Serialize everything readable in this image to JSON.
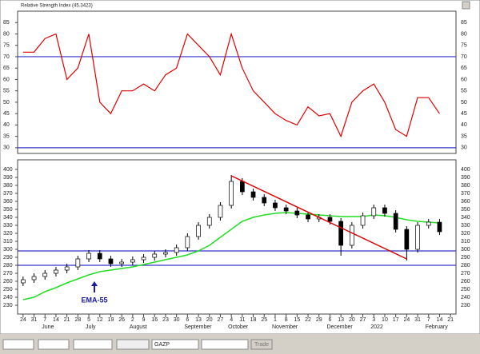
{
  "chart_data": [
    {
      "type": "line",
      "title": "Relative Strength Index (45.3423)",
      "color": "#e00000",
      "values": [
        72,
        72,
        78,
        80,
        60,
        65,
        80,
        50,
        45,
        55,
        55,
        58,
        55,
        62,
        65,
        80,
        75,
        70,
        62,
        80,
        65,
        55,
        50,
        45,
        42,
        40,
        48,
        44,
        45,
        35,
        50,
        55,
        58,
        50,
        38,
        35,
        52,
        52,
        45,
        null
      ],
      "ylim": [
        27.5,
        90
      ],
      "yticks": [
        30,
        35,
        40,
        45,
        50,
        55,
        60,
        65,
        70,
        75,
        80,
        85
      ],
      "hlines": [
        70,
        30
      ],
      "hline_color": "#3333cc"
    },
    {
      "type": "candlestick",
      "categories": [
        "24",
        "31",
        "7",
        "14",
        "21",
        "28",
        "5",
        "12",
        "19",
        "26",
        "2",
        "9",
        "16",
        "23",
        "30",
        "6",
        "13",
        "20",
        "27",
        "4",
        "11",
        "18",
        "25",
        "1",
        "8",
        "15",
        "22",
        "29",
        "6",
        "13",
        "20",
        "27",
        "3",
        "10",
        "17",
        "24",
        "31",
        "7",
        "14",
        "21"
      ],
      "month_labels": [
        null,
        null,
        "June",
        null,
        null,
        null,
        "July",
        null,
        null,
        null,
        "August",
        null,
        null,
        null,
        null,
        "September",
        null,
        null,
        null,
        "October",
        null,
        null,
        null,
        "November",
        null,
        null,
        null,
        null,
        "December",
        null,
        null,
        null,
        "2022",
        null,
        null,
        null,
        null,
        "February",
        null,
        null
      ],
      "open": [
        258,
        262,
        266,
        270,
        274,
        278,
        288,
        295,
        288,
        282,
        284,
        287,
        290,
        294,
        296,
        302,
        316,
        330,
        340,
        355,
        385,
        372,
        365,
        358,
        352,
        348,
        343,
        338,
        340,
        335,
        305,
        330,
        342,
        352,
        345,
        325,
        300,
        330,
        334,
        null
      ],
      "high": [
        266,
        270,
        274,
        278,
        282,
        292,
        299,
        299,
        292,
        288,
        291,
        294,
        298,
        300,
        306,
        320,
        334,
        344,
        359,
        393,
        389,
        376,
        369,
        362,
        356,
        352,
        347,
        344,
        344,
        339,
        334,
        346,
        356,
        356,
        349,
        329,
        334,
        338,
        338,
        null
      ],
      "low": [
        254,
        258,
        262,
        266,
        270,
        274,
        284,
        284,
        278,
        278,
        280,
        283,
        286,
        290,
        292,
        298,
        312,
        326,
        336,
        351,
        368,
        361,
        354,
        348,
        344,
        339,
        334,
        334,
        331,
        292,
        301,
        326,
        338,
        341,
        321,
        286,
        296,
        326,
        318,
        null
      ],
      "close": [
        262,
        266,
        270,
        274,
        278,
        288,
        295,
        288,
        282,
        284,
        287,
        290,
        294,
        296,
        302,
        316,
        330,
        340,
        355,
        385,
        372,
        365,
        358,
        352,
        348,
        343,
        338,
        340,
        335,
        305,
        330,
        342,
        352,
        345,
        325,
        300,
        330,
        334,
        322,
        null
      ],
      "ema": {
        "color": "#22dd22",
        "values": [
          237,
          240,
          247,
          252,
          258,
          263,
          268,
          272,
          274,
          276,
          278,
          281,
          284,
          287,
          290,
          293,
          298,
          305,
          315,
          325,
          335,
          340,
          343,
          345,
          346,
          345,
          344,
          343,
          342,
          341,
          341,
          341,
          343,
          342,
          340,
          337,
          335,
          334,
          333,
          null
        ]
      },
      "trendline": {
        "color": "#e00000",
        "start": {
          "index": 19,
          "value": 392
        },
        "end": {
          "index": 35,
          "value": 288
        }
      },
      "annotation": "EMA-55",
      "annotation_color": "#1a1aa6",
      "ylim": [
        219,
        412
      ],
      "yticks": [
        230,
        240,
        250,
        260,
        270,
        280,
        290,
        300,
        310,
        320,
        330,
        340,
        350,
        360,
        370,
        380,
        390,
        400
      ],
      "hlines": [
        298,
        280
      ],
      "hline_color": "#3333cc"
    }
  ],
  "toolbar": {
    "symbol": "GAZP",
    "button": "Trade"
  }
}
